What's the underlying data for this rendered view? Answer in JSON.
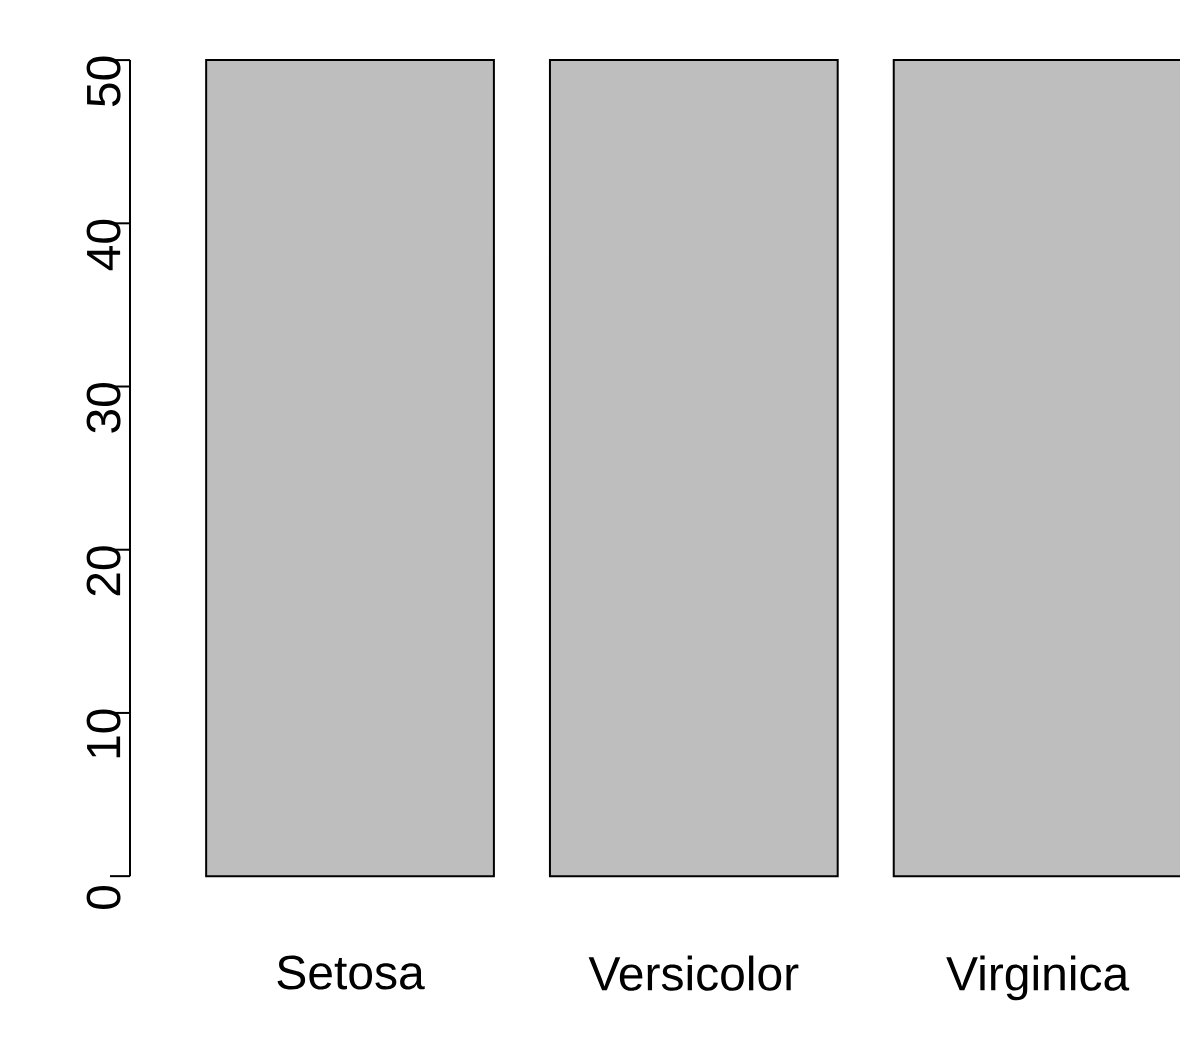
{
  "chart_data": {
    "type": "bar",
    "categories": [
      "Setosa",
      "Versicolor",
      "Virginica"
    ],
    "values": [
      50,
      50,
      50
    ],
    "color": "#bebebe",
    "ylim": [
      0,
      50
    ],
    "yticks": [
      0,
      10,
      20,
      30,
      40,
      50
    ]
  }
}
